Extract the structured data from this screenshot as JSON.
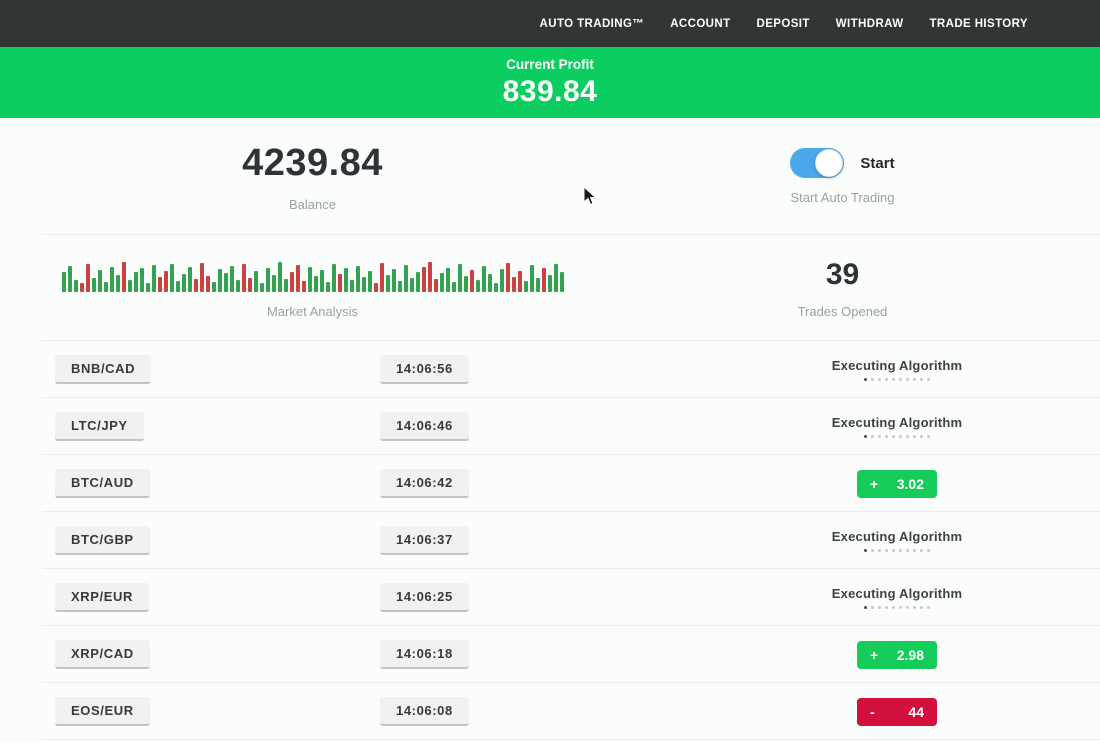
{
  "nav": {
    "items": [
      {
        "label": "AUTO TRADING™"
      },
      {
        "label": "ACCOUNT"
      },
      {
        "label": "DEPOSIT"
      },
      {
        "label": "WITHDRAW"
      },
      {
        "label": "TRADE HISTORY"
      }
    ]
  },
  "profit_banner": {
    "label": "Current Profit",
    "value": "839.84"
  },
  "stats": {
    "balance_value": "4239.84",
    "balance_label": "Balance",
    "toggle_label": "Start",
    "toggle_state": "on",
    "toggle_sublabel": "Start Auto Trading",
    "trades_value": "39",
    "trades_label": "Trades Opened",
    "market_label": "Market Analysis"
  },
  "chart_data": {
    "type": "bar",
    "title": "Market Analysis",
    "ylabel": "",
    "xlabel": "",
    "legend": false,
    "heights": [
      20,
      26,
      12,
      9,
      28,
      14,
      22,
      10,
      25,
      17,
      30,
      12,
      20,
      24,
      9,
      27,
      15,
      21,
      28,
      11,
      18,
      25,
      13,
      29,
      16,
      10,
      23,
      19,
      26,
      12,
      28,
      14,
      21,
      9,
      24,
      17,
      30,
      13,
      20,
      27,
      11,
      25,
      16,
      22,
      10,
      28,
      18,
      24,
      12,
      26,
      15,
      21,
      9,
      29,
      17,
      23,
      11,
      27,
      14,
      20,
      25,
      30,
      13,
      19,
      24,
      10,
      28,
      16,
      22,
      12,
      26,
      18,
      9,
      23,
      29,
      15,
      21,
      11,
      27,
      14,
      24,
      17,
      28,
      20
    ],
    "colors_sequence": "gggrrgggggrgggggrrggggrrrgggggrrggggggrrrgggggrgggggrrggggggrrrgggggrgggggrrrgggrggg"
  },
  "executing": {
    "dots_total": 10,
    "dots_active": 1
  },
  "trades": [
    {
      "pair": "BNB/CAD",
      "time": "14:06:56",
      "status": "executing",
      "status_label": "Executing Algorithm"
    },
    {
      "pair": "LTC/JPY",
      "time": "14:06:46",
      "status": "executing",
      "status_label": "Executing Algorithm"
    },
    {
      "pair": "BTC/AUD",
      "time": "14:06:42",
      "status": "profit",
      "sign": "+",
      "amount": "3.02"
    },
    {
      "pair": "BTC/GBP",
      "time": "14:06:37",
      "status": "executing",
      "status_label": "Executing Algorithm"
    },
    {
      "pair": "XRP/EUR",
      "time": "14:06:25",
      "status": "executing",
      "status_label": "Executing Algorithm"
    },
    {
      "pair": "XRP/CAD",
      "time": "14:06:18",
      "status": "profit",
      "sign": "+",
      "amount": "2.98"
    },
    {
      "pair": "EOS/EUR",
      "time": "14:06:08",
      "status": "loss",
      "sign": "-",
      "amount": "44"
    }
  ],
  "colors": {
    "nav_bg": "#323535",
    "banner_green": "#0cce60",
    "profit_green": "#15cb5a",
    "loss_red": "#d1103e",
    "toggle_blue": "#4aa9ea",
    "bar_green": "#33a352",
    "bar_red": "#cc4141"
  }
}
